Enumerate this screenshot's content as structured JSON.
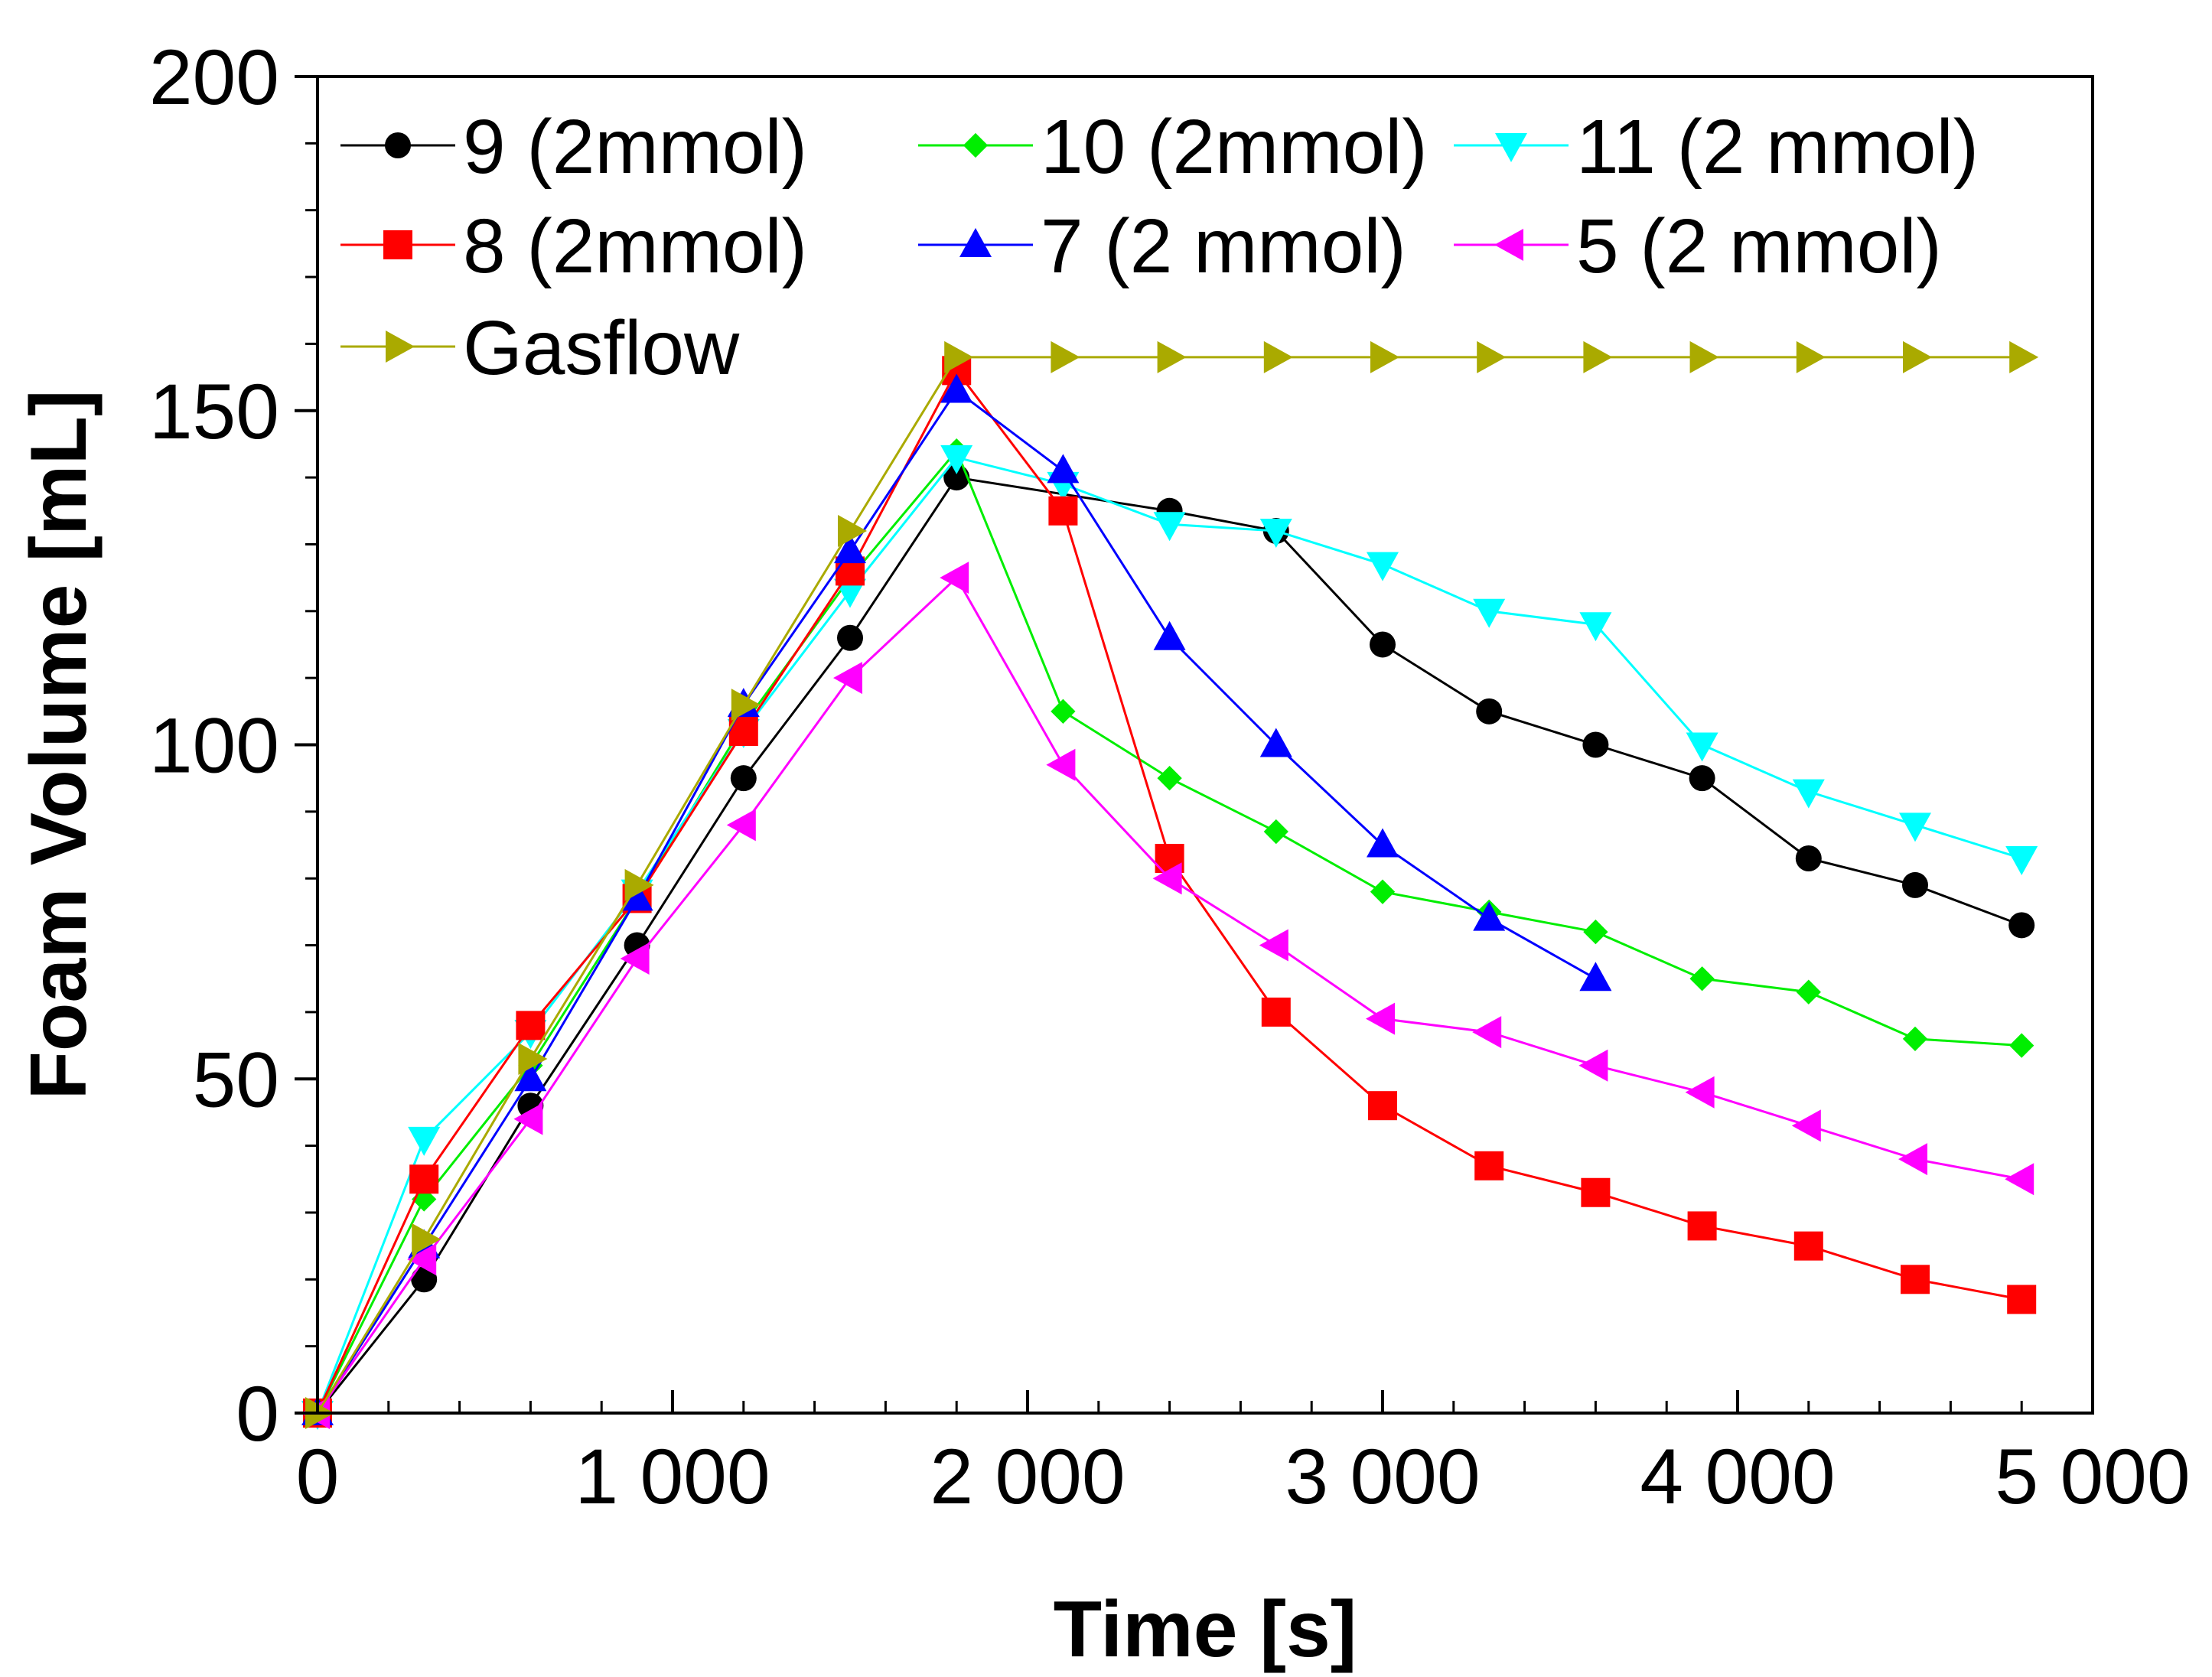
{
  "chart_data": {
    "type": "line",
    "xlabel": "Time [s]",
    "ylabel": "Foam Volume [mL]",
    "xlim": [
      0,
      5000
    ],
    "ylim": [
      0,
      200
    ],
    "x_major_ticks": [
      0,
      1000,
      2000,
      3000,
      4000,
      5000
    ],
    "x_tick_labels": [
      "0",
      "1 000",
      "2 000",
      "3 000",
      "4 000",
      "5 000"
    ],
    "x_minor_step": 200,
    "y_major_ticks": [
      0,
      50,
      100,
      150,
      200
    ],
    "y_tick_labels": [
      "0",
      "50",
      "100",
      "150",
      "200"
    ],
    "y_minor_step": 10,
    "grid": false,
    "legend_position": "top-left",
    "series": [
      {
        "name": "9 (2mmol)",
        "color": "#000000",
        "marker": "circle",
        "x": [
          0,
          300,
          600,
          900,
          1200,
          1500,
          1800,
          2400,
          2700,
          3000,
          3300,
          3600,
          3900,
          4200,
          4500,
          4800
        ],
        "y": [
          0,
          20,
          46,
          70,
          95,
          116,
          140,
          135,
          132,
          115,
          105,
          100,
          95,
          83,
          79,
          73
        ]
      },
      {
        "name": "10 (2mmol)",
        "color": "#00ee00",
        "marker": "diamond",
        "x": [
          0,
          300,
          600,
          900,
          1200,
          1500,
          1800,
          2100,
          2400,
          2700,
          3000,
          3300,
          3600,
          3900,
          4200,
          4500,
          4800
        ],
        "y": [
          0,
          32,
          52,
          77,
          103,
          125,
          144,
          105,
          95,
          87,
          78,
          75,
          72,
          65,
          63,
          56,
          55
        ]
      },
      {
        "name": "11 (2 mmol)",
        "color": "#00ffff",
        "marker": "triangle-down",
        "x": [
          0,
          300,
          600,
          900,
          1200,
          1500,
          1800,
          2100,
          2400,
          2700,
          3000,
          3300,
          3600,
          3900,
          4200,
          4500,
          4800
        ],
        "y": [
          0,
          41,
          57,
          78,
          102,
          123,
          143,
          139,
          133,
          132,
          127,
          120,
          118,
          100,
          93,
          88,
          83
        ]
      },
      {
        "name": "8 (2mmol)",
        "color": "#ff0000",
        "marker": "square",
        "x": [
          0,
          300,
          600,
          900,
          1200,
          1500,
          1800,
          2100,
          2400,
          2700,
          3000,
          3300,
          3600,
          3900,
          4200,
          4500,
          4800
        ],
        "y": [
          0,
          35,
          58,
          77,
          102,
          126,
          156,
          135,
          83,
          60,
          46,
          37,
          33,
          28,
          25,
          20,
          17
        ]
      },
      {
        "name": "7 (2 mmol)",
        "color": "#0000ff",
        "marker": "triangle-up",
        "x": [
          0,
          300,
          600,
          900,
          1200,
          1500,
          1800,
          2100,
          2400,
          2700,
          3000,
          3300,
          3600
        ],
        "y": [
          0,
          25,
          50,
          77,
          106,
          129,
          153,
          141,
          116,
          100,
          85,
          74,
          65
        ]
      },
      {
        "name": "5 (2 mmol)",
        "color": "#ff00ff",
        "marker": "triangle-left",
        "x": [
          0,
          300,
          600,
          900,
          1200,
          1500,
          1800,
          2100,
          2400,
          2700,
          3000,
          3300,
          3600,
          3900,
          4200,
          4500,
          4800
        ],
        "y": [
          0,
          23,
          44,
          68,
          88,
          110,
          125,
          97,
          80,
          70,
          59,
          57,
          52,
          48,
          43,
          38,
          35
        ]
      },
      {
        "name": "Gasflow",
        "color": "#aaaa00",
        "marker": "triangle-right",
        "x": [
          0,
          300,
          600,
          900,
          1200,
          1500,
          1800,
          2100,
          2400,
          2700,
          3000,
          3300,
          3600,
          3900,
          4200,
          4500,
          4800
        ],
        "y": [
          0,
          26,
          53,
          79,
          106,
          132,
          158,
          158,
          158,
          158,
          158,
          158,
          158,
          158,
          158,
          158,
          158
        ]
      }
    ]
  }
}
